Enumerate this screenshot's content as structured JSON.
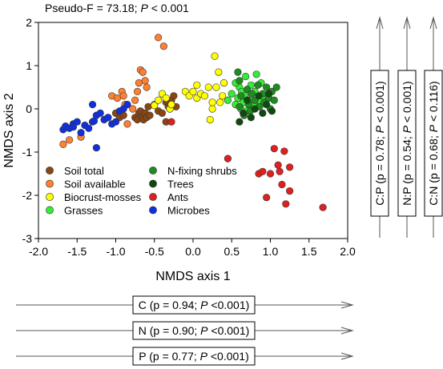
{
  "chart_data": {
    "type": "scatter",
    "title": "Pseudo-F = 73.18; P < 0.001",
    "title_parts": {
      "pre": "Pseudo-F = 73.18; ",
      "p": "P",
      "post": " < 0.001"
    },
    "xlabel": "NMDS axis 1",
    "ylabel": "NMDS axis 2",
    "xlim": [
      -2.0,
      2.0
    ],
    "ylim": [
      -3,
      2
    ],
    "xticks": [
      "-2.0",
      "-1.5",
      "-1.0",
      "-0.5",
      "0.0",
      "0.5",
      "1.0",
      "1.5",
      "2.0"
    ],
    "yticks": [
      "2",
      "1",
      "0",
      "-1",
      "-2",
      "-3"
    ],
    "grid": false,
    "legend_position": "bottom-left",
    "series": [
      {
        "name": "Soil total",
        "color": "#8B4513",
        "points": [
          [
            -1.0,
            -0.1
          ],
          [
            -0.95,
            -0.2
          ],
          [
            -0.9,
            -0.15
          ],
          [
            -0.75,
            -0.2
          ],
          [
            -0.72,
            -0.25
          ],
          [
            -0.7,
            -0.1
          ],
          [
            -0.68,
            -0.05
          ],
          [
            -0.66,
            -0.2
          ],
          [
            -0.64,
            -0.25
          ],
          [
            -0.62,
            -0.1
          ],
          [
            -0.6,
            -0.2
          ],
          [
            -0.58,
            0.05
          ],
          [
            -0.56,
            -0.15
          ],
          [
            -0.5,
            0.1
          ],
          [
            -0.45,
            -0.05
          ],
          [
            -0.4,
            -0.1
          ],
          [
            -0.35,
            0.15
          ],
          [
            -0.35,
            -0.3
          ],
          [
            -0.32,
            0.05
          ],
          [
            -0.3,
            0.0
          ],
          [
            -0.28,
            0.2
          ],
          [
            -0.25,
            0.3
          ],
          [
            -0.22,
            0.05
          ]
        ]
      },
      {
        "name": "Soil available",
        "color": "#FF8030",
        "points": [
          [
            -1.68,
            -0.82
          ],
          [
            -1.6,
            -0.72
          ],
          [
            -1.45,
            -0.65
          ],
          [
            -1.1,
            -0.2
          ],
          [
            -1.05,
            0.3
          ],
          [
            -0.98,
            0.25
          ],
          [
            -0.92,
            0.4
          ],
          [
            -0.9,
            0.3
          ],
          [
            -0.88,
            0.1
          ],
          [
            -0.85,
            -0.35
          ],
          [
            -0.78,
            0.0
          ],
          [
            -0.75,
            0.2
          ],
          [
            -0.72,
            0.4
          ],
          [
            -0.7,
            0.6
          ],
          [
            -0.68,
            0.9
          ],
          [
            -0.65,
            0.85
          ],
          [
            -0.62,
            0.65
          ],
          [
            -0.6,
            0.5
          ],
          [
            -0.45,
            1.65
          ],
          [
            -0.38,
            1.45
          ]
        ]
      },
      {
        "name": "Biocrust-mosses",
        "color": "#FFFF00",
        "points": [
          [
            -0.5,
            0.08
          ],
          [
            -0.45,
            0.2
          ],
          [
            -0.4,
            0.35
          ],
          [
            -0.35,
            0.25
          ],
          [
            -0.3,
            0.0
          ],
          [
            -0.28,
            0.1
          ],
          [
            -0.1,
            0.4
          ],
          [
            -0.05,
            0.3
          ],
          [
            0.0,
            0.4
          ],
          [
            0.05,
            0.25
          ],
          [
            0.05,
            0.55
          ],
          [
            0.1,
            0.35
          ],
          [
            0.15,
            0.3
          ],
          [
            0.2,
            0.5
          ],
          [
            0.22,
            -0.25
          ],
          [
            0.25,
            0.0
          ],
          [
            0.25,
            0.15
          ],
          [
            0.28,
            1.22
          ],
          [
            0.3,
            0.5
          ],
          [
            0.33,
            0.85
          ],
          [
            0.35,
            0.15
          ],
          [
            0.38,
            0.3
          ],
          [
            0.4,
            0.6
          ]
        ]
      },
      {
        "name": "Grasses",
        "color": "#33EE33",
        "points": [
          [
            0.45,
            0.2
          ],
          [
            0.5,
            0.35
          ],
          [
            0.55,
            0.1
          ],
          [
            0.58,
            0.25
          ],
          [
            0.6,
            0.5
          ],
          [
            0.62,
            0.0
          ],
          [
            0.63,
            0.4
          ],
          [
            0.65,
            0.15
          ],
          [
            0.67,
            0.3
          ],
          [
            0.7,
            -0.05
          ],
          [
            0.72,
            0.2
          ],
          [
            0.75,
            0.55
          ],
          [
            0.78,
            0.1
          ],
          [
            0.8,
            0.4
          ],
          [
            0.82,
            0.8
          ],
          [
            0.85,
            0.2
          ],
          [
            0.88,
            0.6
          ],
          [
            0.9,
            0.3
          ],
          [
            0.55,
            0.6
          ],
          [
            0.68,
            0.75
          ]
        ]
      },
      {
        "name": "N-fixing shrubs",
        "color": "#1E8C1E",
        "points": [
          [
            0.58,
            0.85
          ],
          [
            0.6,
            0.05
          ],
          [
            0.62,
            0.3
          ],
          [
            0.66,
            -0.15
          ],
          [
            0.7,
            0.45
          ],
          [
            0.72,
            0.1
          ],
          [
            0.74,
            -0.05
          ],
          [
            0.76,
            0.35
          ],
          [
            0.8,
            0.2
          ],
          [
            0.84,
            0.55
          ],
          [
            0.86,
            0.05
          ],
          [
            0.9,
            0.35
          ],
          [
            0.92,
            0.15
          ],
          [
            0.95,
            0.5
          ],
          [
            0.98,
            0.25
          ],
          [
            1.0,
            0.0
          ],
          [
            1.02,
            0.4
          ],
          [
            1.05,
            0.2
          ],
          [
            1.08,
            0.5
          ],
          [
            0.6,
            0.65
          ]
        ]
      },
      {
        "name": "Trees",
        "color": "#0E4A0E",
        "points": [
          [
            0.6,
            -0.3
          ],
          [
            0.65,
            -0.1
          ],
          [
            0.7,
            0.2
          ],
          [
            0.75,
            -0.2
          ],
          [
            0.8,
            0.0
          ],
          [
            0.85,
            0.3
          ],
          [
            0.9,
            -0.1
          ],
          [
            0.95,
            0.1
          ],
          [
            0.98,
            0.35
          ],
          [
            1.02,
            -0.05
          ]
        ]
      },
      {
        "name": "Ants",
        "color": "#E02020",
        "points": [
          [
            -0.28,
            -0.3
          ],
          [
            0.45,
            -1.15
          ],
          [
            0.85,
            -1.5
          ],
          [
            0.9,
            -1.45
          ],
          [
            0.95,
            -2.05
          ],
          [
            1.0,
            -1.5
          ],
          [
            1.05,
            -0.92
          ],
          [
            1.1,
            -1.3
          ],
          [
            1.12,
            -1.45
          ],
          [
            1.15,
            -1.75
          ],
          [
            1.18,
            -0.98
          ],
          [
            1.2,
            -2.2
          ],
          [
            1.25,
            -1.35
          ],
          [
            1.25,
            -1.9
          ],
          [
            1.68,
            -2.28
          ]
        ]
      },
      {
        "name": "Microbes",
        "color": "#1030E0",
        "points": [
          [
            -1.68,
            -0.48
          ],
          [
            -1.65,
            -0.4
          ],
          [
            -1.6,
            -0.45
          ],
          [
            -1.55,
            -0.35
          ],
          [
            -1.55,
            -0.42
          ],
          [
            -1.5,
            -0.3
          ],
          [
            -1.45,
            -0.55
          ],
          [
            -1.4,
            -0.38
          ],
          [
            -1.35,
            -0.45
          ],
          [
            -1.3,
            -0.3
          ],
          [
            -1.28,
            -0.28
          ],
          [
            -1.25,
            -0.15
          ],
          [
            -1.25,
            -0.9
          ],
          [
            -1.2,
            -0.1
          ],
          [
            -1.15,
            -0.25
          ],
          [
            -1.1,
            -0.2
          ],
          [
            -1.05,
            -0.35
          ],
          [
            -1.0,
            -0.3
          ],
          [
            -0.95,
            -0.05
          ],
          [
            -0.9,
            0.0
          ],
          [
            -0.85,
            0.1
          ],
          [
            -1.3,
            0.1
          ]
        ]
      }
    ]
  },
  "vectors_right": [
    {
      "pre": "C:P (p = 0.78; ",
      "p": "P",
      "post": " < 0.001)"
    },
    {
      "pre": "N:P (p = 0.54; ",
      "p": "P",
      "post": " < 0.001)"
    },
    {
      "pre": "C:N (p = 0.68; ",
      "p": "P",
      "post": " < 0.116)"
    }
  ],
  "vectors_bottom": [
    {
      "pre": "C (p = 0.94; ",
      "p": "P",
      "post": " <0.001)"
    },
    {
      "pre": "N (p = 0.90; ",
      "p": "P",
      "post": " <0.001)"
    },
    {
      "pre": "P (p = 0.77; ",
      "p": "P",
      "post": " <0.001)"
    }
  ]
}
